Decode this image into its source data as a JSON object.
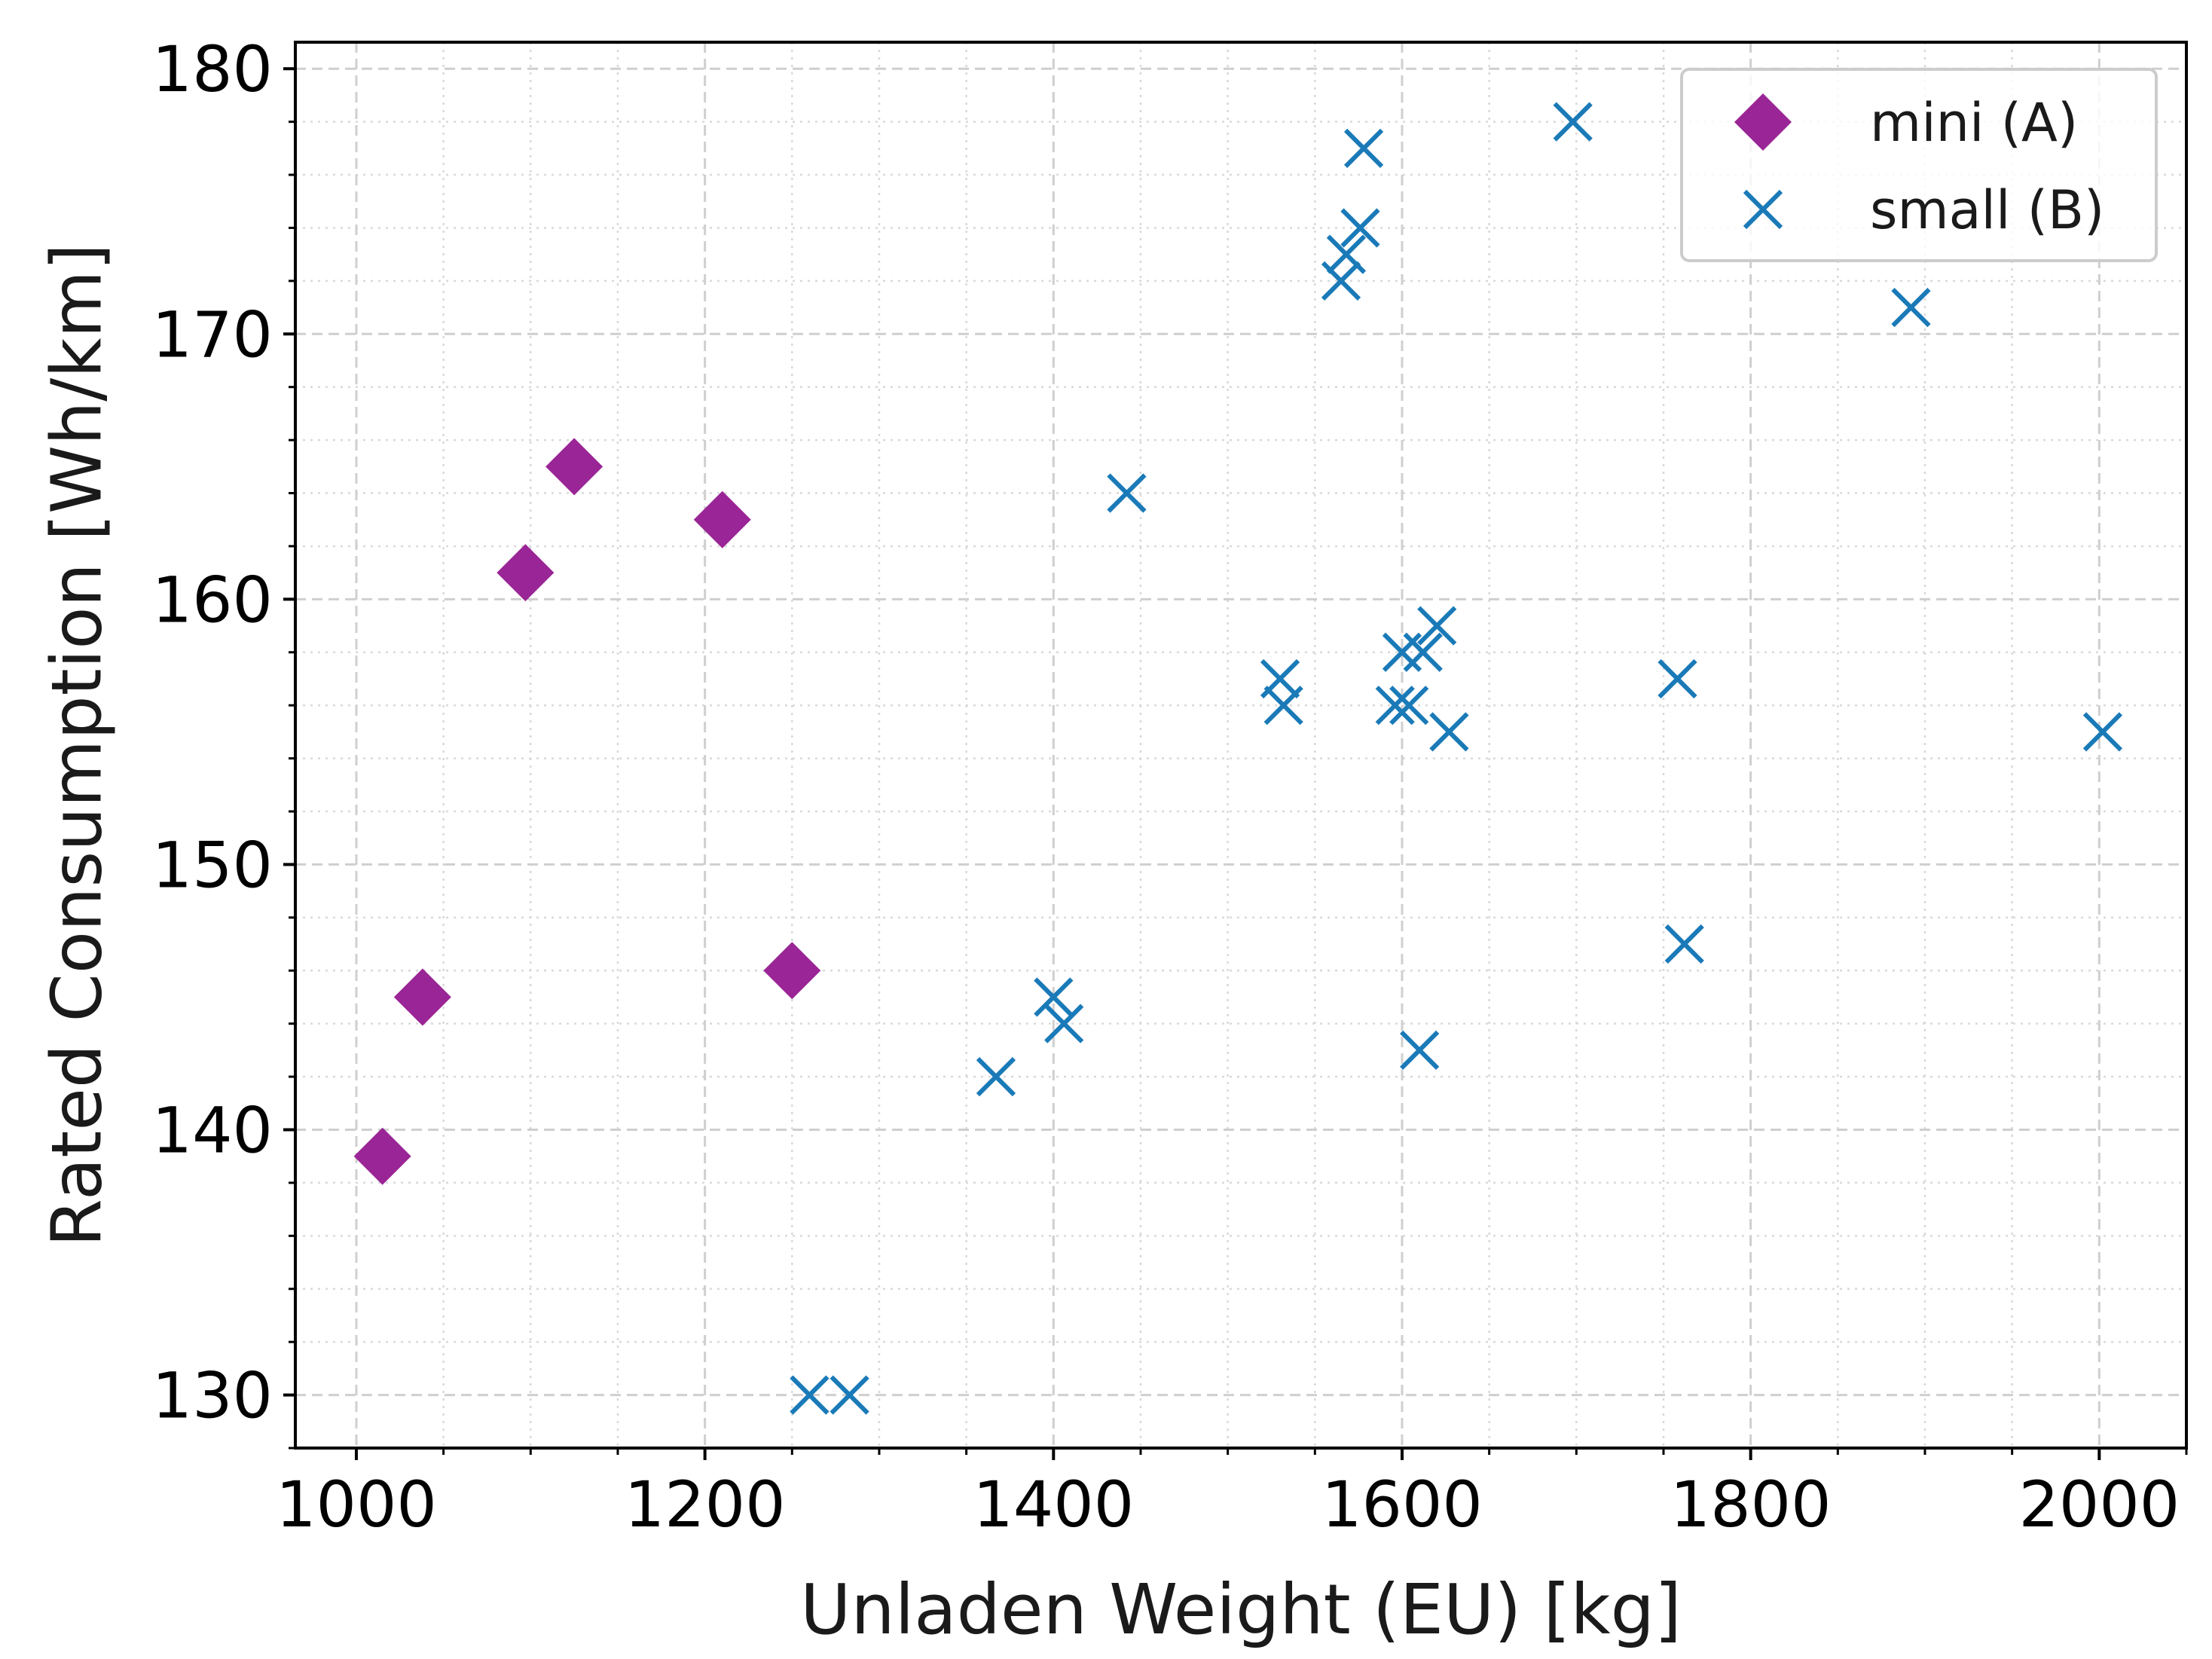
{
  "chart_data": {
    "type": "scatter",
    "title": "",
    "xlabel": "Unladen Weight (EU) [kg]",
    "ylabel": "Rated Consumption [Wh/km]",
    "xlim": [
      965,
      2050
    ],
    "ylim": [
      128,
      181
    ],
    "xticks": [
      1000,
      1200,
      1400,
      1600,
      1800,
      2000
    ],
    "yticks": [
      130,
      140,
      150,
      160,
      170,
      180
    ],
    "x_minor_step": 50,
    "y_minor_step": 2,
    "grid": true,
    "legend_position": "top-right",
    "series": [
      {
        "name": "mini (A)",
        "marker": "diamond",
        "color": "#9a2596",
        "points": [
          {
            "x": 1015,
            "y": 139
          },
          {
            "x": 1038,
            "y": 145
          },
          {
            "x": 1097,
            "y": 161
          },
          {
            "x": 1125,
            "y": 165
          },
          {
            "x": 1210,
            "y": 163
          },
          {
            "x": 1250,
            "y": 146
          }
        ]
      },
      {
        "name": "small (B)",
        "marker": "x",
        "color": "#1a7ab8",
        "points": [
          {
            "x": 1260,
            "y": 130
          },
          {
            "x": 1283,
            "y": 130
          },
          {
            "x": 1367,
            "y": 142
          },
          {
            "x": 1400,
            "y": 145
          },
          {
            "x": 1406,
            "y": 144
          },
          {
            "x": 1442,
            "y": 164
          },
          {
            "x": 1530,
            "y": 157
          },
          {
            "x": 1532,
            "y": 156
          },
          {
            "x": 1565,
            "y": 172
          },
          {
            "x": 1568,
            "y": 173
          },
          {
            "x": 1576,
            "y": 174
          },
          {
            "x": 1578,
            "y": 177
          },
          {
            "x": 1596,
            "y": 156
          },
          {
            "x": 1600,
            "y": 158
          },
          {
            "x": 1604,
            "y": 156
          },
          {
            "x": 1610,
            "y": 143
          },
          {
            "x": 1612,
            "y": 158
          },
          {
            "x": 1620,
            "y": 159
          },
          {
            "x": 1627,
            "y": 155
          },
          {
            "x": 1698,
            "y": 178
          },
          {
            "x": 1758,
            "y": 157
          },
          {
            "x": 1762,
            "y": 147
          },
          {
            "x": 1892,
            "y": 171
          },
          {
            "x": 2002,
            "y": 155
          }
        ]
      }
    ]
  }
}
